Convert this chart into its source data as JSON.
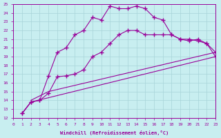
{
  "xlabel": "Windchill (Refroidissement éolien,°C)",
  "xlim": [
    0,
    23
  ],
  "ylim": [
    12,
    25
  ],
  "xticks": [
    0,
    1,
    2,
    3,
    4,
    5,
    6,
    7,
    8,
    9,
    10,
    11,
    12,
    13,
    14,
    15,
    16,
    17,
    18,
    19,
    20,
    21,
    22,
    23
  ],
  "yticks": [
    12,
    13,
    14,
    15,
    16,
    17,
    18,
    19,
    20,
    21,
    22,
    23,
    24,
    25
  ],
  "bg_color": "#c8eef0",
  "grid_color": "#a8d4d8",
  "line_color": "#990099",
  "curves": [
    {
      "x": [
        1,
        2,
        23
      ],
      "y": [
        12.5,
        13.8,
        19.0
      ],
      "markers": false
    },
    {
      "x": [
        2,
        4,
        23
      ],
      "y": [
        14.0,
        15.0,
        19.5
      ],
      "markers": false
    },
    {
      "x": [
        1,
        2,
        3,
        4,
        5,
        6,
        7,
        8,
        9,
        10,
        11,
        12,
        13,
        14,
        15,
        16,
        17,
        18,
        19,
        20,
        21,
        22,
        23
      ],
      "y": [
        12.5,
        13.8,
        14.0,
        14.8,
        16.7,
        16.8,
        17.0,
        17.5,
        19.0,
        19.5,
        20.5,
        21.5,
        22.0,
        22.0,
        21.5,
        21.5,
        21.5,
        21.5,
        21.0,
        21.0,
        20.8,
        20.5,
        19.0
      ],
      "markers": true
    },
    {
      "x": [
        1,
        2,
        3,
        4,
        5,
        6,
        7,
        8,
        9,
        10,
        11,
        12,
        13,
        14,
        15,
        16,
        17,
        18,
        19,
        20,
        21,
        22,
        23
      ],
      "y": [
        12.5,
        13.8,
        14.0,
        16.8,
        19.5,
        20.0,
        21.5,
        22.0,
        23.5,
        23.2,
        24.8,
        24.5,
        24.5,
        24.8,
        24.5,
        23.5,
        23.2,
        21.5,
        21.0,
        20.8,
        21.0,
        20.5,
        19.5
      ],
      "markers": true
    }
  ]
}
